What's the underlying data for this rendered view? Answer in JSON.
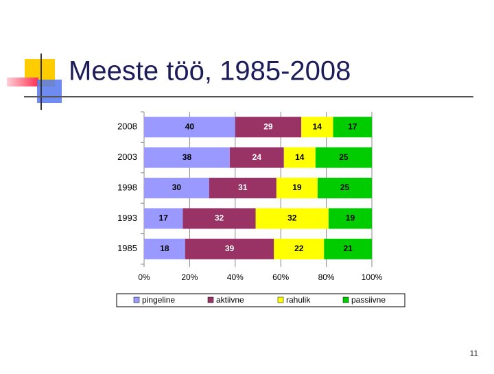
{
  "slide": {
    "title": "Meeste töö, 1985-2008",
    "page_number": "11"
  },
  "chart_data": {
    "type": "stacked-bar-100",
    "orientation": "horizontal",
    "categories": [
      "2008",
      "2003",
      "1998",
      "1993",
      "1985"
    ],
    "series": [
      {
        "name": "pingeline",
        "color": "#9999ff",
        "values": [
          40,
          38,
          30,
          17,
          18
        ]
      },
      {
        "name": "aktiivne",
        "color": "#993366",
        "values": [
          29,
          24,
          31,
          32,
          39
        ]
      },
      {
        "name": "rahulik",
        "color": "#ffff00",
        "values": [
          14,
          14,
          19,
          32,
          22
        ]
      },
      {
        "name": "passiivne",
        "color": "#00cc00",
        "values": [
          17,
          25,
          25,
          19,
          21
        ]
      }
    ],
    "xlim": [
      0,
      100
    ],
    "xticks": [
      {
        "value": 0,
        "label": "0%"
      },
      {
        "value": 20,
        "label": "20%"
      },
      {
        "value": 40,
        "label": "40%"
      },
      {
        "value": 60,
        "label": "60%"
      },
      {
        "value": 80,
        "label": "80%"
      },
      {
        "value": 100,
        "label": "100%"
      }
    ],
    "grid": true,
    "legend": "bottom"
  }
}
